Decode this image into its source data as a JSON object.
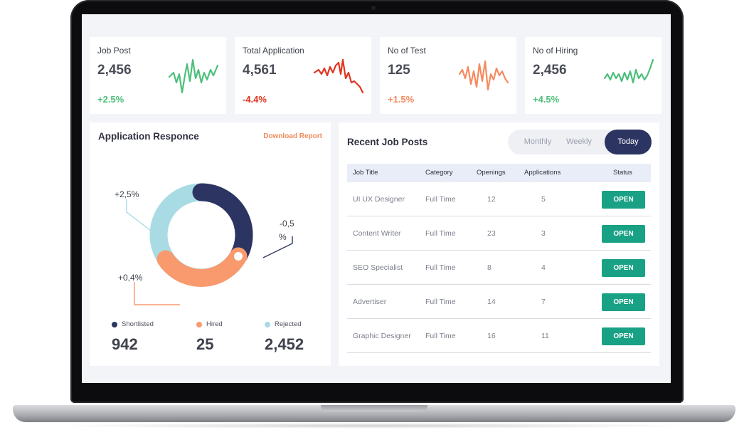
{
  "stats": [
    {
      "title": "Job Post",
      "value": "2,456",
      "change": "+2.5%",
      "color": "#4cbf7a"
    },
    {
      "title": "Total Application",
      "value": "4,561",
      "change": "-4.4%",
      "color": "#e0341e"
    },
    {
      "title": "No of Test",
      "value": "125",
      "change": "+1.5%",
      "color": "#f58a5e"
    },
    {
      "title": "No of Hiring",
      "value": "2,456",
      "change": "+4.5%",
      "color": "#4cbf7a"
    }
  ],
  "response": {
    "title": "Application Responce",
    "download_label": "Download Report",
    "callouts": {
      "rejected": "+2,5%",
      "shortlisted_line1": "-0,5",
      "shortlisted_line2": "%",
      "hired": "+0,4%"
    },
    "legend": [
      {
        "label": "Shortlisted",
        "value": "942",
        "color": "#2c3562"
      },
      {
        "label": "Hired",
        "value": "25",
        "color": "#f99a6e"
      },
      {
        "label": "Rejected",
        "value": "2,452",
        "color": "#a9dbe4"
      }
    ]
  },
  "jobs": {
    "title": "Recent Job Posts",
    "tabs": [
      "Monthly",
      "Weekly",
      "Today"
    ],
    "active_tab": "Today",
    "columns": [
      "Job Title",
      "Category",
      "Openings",
      "Applications",
      "Status"
    ],
    "rows": [
      {
        "title": "UI UX Designer",
        "category": "Full Time",
        "openings": "12",
        "applications": "5",
        "status": "OPEN"
      },
      {
        "title": "Content Writer",
        "category": "Full Time",
        "openings": "23",
        "applications": "3",
        "status": "OPEN"
      },
      {
        "title": "SEO Specialist",
        "category": "Full Time",
        "openings": "8",
        "applications": "4",
        "status": "OPEN"
      },
      {
        "title": "Advertiser",
        "category": "Full Time",
        "openings": "14",
        "applications": "7",
        "status": "OPEN"
      },
      {
        "title": "Graphic Designer",
        "category": "Full Time",
        "openings": "16",
        "applications": "11",
        "status": "OPEN"
      }
    ],
    "status_color": "#19a185"
  }
}
